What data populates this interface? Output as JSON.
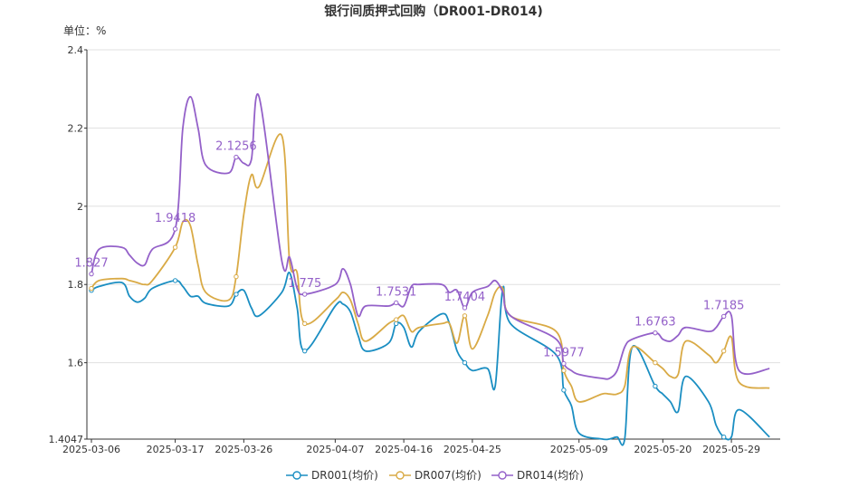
{
  "chart_data": {
    "type": "line",
    "title": "银行间质押式回购（DR001-DR014)",
    "unit_label": "单位：%",
    "x_ticks": [
      "2025-03-06",
      "2025-03-17",
      "2025-03-26",
      "2025-04-07",
      "2025-04-16",
      "2025-04-25",
      "2025-05-09",
      "2025-05-20",
      "2025-05-29"
    ],
    "y_ticks": [
      "1.4047",
      "1.6",
      "1.8",
      "2",
      "2.2",
      "2.4"
    ],
    "ylim": [
      1.4047,
      2.4
    ],
    "grid": true,
    "legend_position": "bottom",
    "x": [
      "2025-03-06",
      "2025-03-07",
      "2025-03-10",
      "2025-03-11",
      "2025-03-12",
      "2025-03-13",
      "2025-03-14",
      "2025-03-17",
      "2025-03-18",
      "2025-03-19",
      "2025-03-20",
      "2025-03-21",
      "2025-03-24",
      "2025-03-25",
      "2025-03-26",
      "2025-03-27",
      "2025-03-28",
      "2025-03-31",
      "2025-04-01",
      "2025-04-02",
      "2025-04-03",
      "2025-04-07",
      "2025-04-08",
      "2025-04-09",
      "2025-04-10",
      "2025-04-11",
      "2025-04-14",
      "2025-04-15",
      "2025-04-16",
      "2025-04-17",
      "2025-04-18",
      "2025-04-21",
      "2025-04-22",
      "2025-04-23",
      "2025-04-24",
      "2025-04-25",
      "2025-04-27",
      "2025-04-28",
      "2025-04-29",
      "2025-04-30",
      "2025-05-06",
      "2025-05-07",
      "2025-05-08",
      "2025-05-09",
      "2025-05-12",
      "2025-05-13",
      "2025-05-14",
      "2025-05-15",
      "2025-05-16",
      "2025-05-19",
      "2025-05-20",
      "2025-05-21",
      "2025-05-22",
      "2025-05-23",
      "2025-05-26",
      "2025-05-27",
      "2025-05-28",
      "2025-05-29",
      "2025-05-30",
      "2025-06-03"
    ],
    "series": [
      {
        "name": "DR001(均价)",
        "color": "#1a8ec2",
        "values": [
          1.785,
          1.795,
          1.805,
          1.77,
          1.755,
          1.765,
          1.79,
          1.81,
          1.795,
          1.77,
          1.77,
          1.752,
          1.745,
          1.775,
          1.785,
          1.74,
          1.72,
          1.78,
          1.83,
          1.74,
          1.63,
          1.745,
          1.75,
          1.73,
          1.67,
          1.63,
          1.65,
          1.7,
          1.69,
          1.64,
          1.68,
          1.725,
          1.7,
          1.63,
          1.6,
          1.58,
          1.585,
          1.54,
          1.79,
          1.7,
          1.62,
          1.53,
          1.49,
          1.42,
          1.405,
          1.405,
          1.41,
          1.405,
          1.64,
          1.54,
          1.52,
          1.5,
          1.475,
          1.565,
          1.5,
          1.44,
          1.41,
          1.41,
          1.48,
          1.41
        ],
        "labels": []
      },
      {
        "name": "DR007(均价)",
        "color": "#d9aa45",
        "values": [
          1.79,
          1.81,
          1.815,
          1.81,
          1.805,
          1.8,
          1.81,
          1.895,
          1.96,
          1.95,
          1.85,
          1.78,
          1.76,
          1.82,
          1.98,
          2.08,
          2.05,
          2.18,
          1.86,
          1.83,
          1.7,
          1.76,
          1.78,
          1.76,
          1.7,
          1.655,
          1.7,
          1.71,
          1.72,
          1.68,
          1.69,
          1.7,
          1.7,
          1.65,
          1.72,
          1.635,
          1.72,
          1.78,
          1.79,
          1.72,
          1.68,
          1.58,
          1.54,
          1.5,
          1.52,
          1.52,
          1.52,
          1.54,
          1.64,
          1.6,
          1.585,
          1.565,
          1.57,
          1.655,
          1.62,
          1.6,
          1.63,
          1.665,
          1.55,
          1.535
        ],
        "labels": []
      },
      {
        "name": "DR014(均价)",
        "color": "#9461c9",
        "values": [
          1.827,
          1.89,
          1.895,
          1.875,
          1.855,
          1.85,
          1.89,
          1.9418,
          2.2,
          2.28,
          2.2,
          2.105,
          2.085,
          2.1256,
          2.11,
          2.12,
          2.28,
          1.86,
          1.87,
          1.79,
          1.775,
          1.8,
          1.84,
          1.8,
          1.72,
          1.745,
          1.745,
          1.7531,
          1.745,
          1.795,
          1.8,
          1.8,
          1.78,
          1.785,
          1.7404,
          1.78,
          1.795,
          1.81,
          1.78,
          1.72,
          1.66,
          1.5977,
          1.58,
          1.57,
          1.56,
          1.56,
          1.58,
          1.64,
          1.66,
          1.6763,
          1.66,
          1.655,
          1.67,
          1.69,
          1.68,
          1.69,
          1.7185,
          1.72,
          1.58,
          1.585
        ],
        "labels": [
          {
            "index": 0,
            "text": "1.827"
          },
          {
            "index": 7,
            "text": "1.9418"
          },
          {
            "index": 13,
            "text": "2.1256"
          },
          {
            "index": 20,
            "text": "1.775"
          },
          {
            "index": 27,
            "text": "1.7531"
          },
          {
            "index": 34,
            "text": "1.7404"
          },
          {
            "index": 41,
            "text": "1.5977"
          },
          {
            "index": 49,
            "text": "1.6763"
          },
          {
            "index": 56,
            "text": "1.7185"
          }
        ]
      }
    ]
  }
}
